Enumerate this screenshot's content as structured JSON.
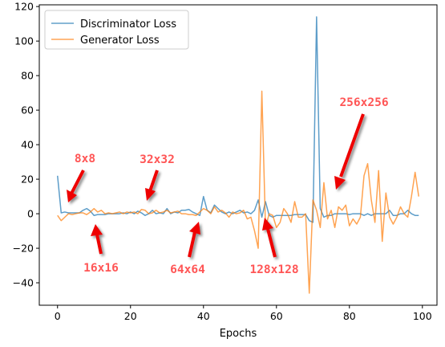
{
  "chart_data": {
    "type": "line",
    "title": "",
    "xlabel": "Epochs",
    "ylabel": "",
    "xlim": [
      -5,
      104
    ],
    "ylim": [
      -53,
      121
    ],
    "xticks": [
      0,
      20,
      40,
      60,
      80,
      100
    ],
    "yticks": [
      -40,
      -20,
      0,
      20,
      40,
      60,
      80,
      100,
      120
    ],
    "grid": false,
    "legend_position": "top-left",
    "series": [
      {
        "name": "Discriminator Loss",
        "color": "#1f77b4",
        "x": [
          0,
          1,
          2,
          3,
          4,
          5,
          6,
          7,
          8,
          9,
          10,
          11,
          12,
          13,
          14,
          15,
          16,
          17,
          18,
          19,
          20,
          21,
          22,
          23,
          24,
          25,
          26,
          27,
          28,
          29,
          30,
          31,
          32,
          33,
          34,
          35,
          36,
          37,
          38,
          39,
          40,
          41,
          42,
          43,
          44,
          45,
          46,
          47,
          48,
          49,
          50,
          51,
          52,
          53,
          54,
          55,
          56,
          57,
          58,
          59,
          60,
          61,
          62,
          63,
          64,
          65,
          66,
          67,
          68,
          69,
          70,
          71,
          72,
          73,
          74,
          75,
          76,
          77,
          78,
          79,
          80,
          81,
          82,
          83,
          84,
          85,
          86,
          87,
          88,
          89,
          90,
          91,
          92,
          93,
          94,
          95,
          96,
          97,
          98,
          99
        ],
        "values": [
          22,
          0.5,
          1,
          0.5,
          0.5,
          0.5,
          0.5,
          2,
          3,
          1.5,
          -1,
          -0.5,
          -0.5,
          -0.5,
          0,
          0,
          0,
          0,
          0.5,
          0,
          1,
          0,
          1.5,
          0.5,
          -1,
          0,
          2,
          0,
          0.5,
          0,
          3,
          0,
          1,
          0.5,
          2,
          2,
          2.5,
          1,
          0,
          -1,
          10,
          2,
          0.5,
          5,
          3,
          1,
          0,
          1,
          0,
          1,
          2,
          0.5,
          1,
          0,
          2,
          8,
          -2,
          7,
          -1,
          -2,
          -1,
          -1,
          -1,
          -1,
          -1,
          -0.5,
          -0.5,
          -0.5,
          -0.5,
          -4,
          -5,
          114,
          3,
          -2,
          -1,
          -1,
          0,
          0,
          0,
          0,
          -0.5,
          0,
          0,
          0,
          -1,
          0,
          -1,
          0,
          0,
          0,
          0,
          2,
          -1,
          -1,
          0,
          0,
          2,
          0,
          -1,
          -1
        ]
      },
      {
        "name": "Generator Loss",
        "color": "#ff7f0e",
        "x": [
          0,
          1,
          2,
          3,
          4,
          5,
          6,
          7,
          8,
          9,
          10,
          11,
          12,
          13,
          14,
          15,
          16,
          17,
          18,
          19,
          20,
          21,
          22,
          23,
          24,
          25,
          26,
          27,
          28,
          29,
          30,
          31,
          32,
          33,
          34,
          35,
          36,
          37,
          38,
          39,
          40,
          41,
          42,
          43,
          44,
          45,
          46,
          47,
          48,
          49,
          50,
          51,
          52,
          53,
          54,
          55,
          56,
          57,
          58,
          59,
          60,
          61,
          62,
          63,
          64,
          65,
          66,
          67,
          68,
          69,
          70,
          71,
          72,
          73,
          74,
          75,
          76,
          77,
          78,
          79,
          80,
          81,
          82,
          83,
          84,
          85,
          86,
          87,
          88,
          89,
          90,
          91,
          92,
          93,
          94,
          95,
          96,
          97,
          98,
          99
        ],
        "values": [
          -1,
          -4,
          -2,
          0,
          -0.5,
          0,
          0.5,
          0.5,
          -0.5,
          1,
          3,
          1,
          2,
          0,
          0.5,
          0,
          0.5,
          1,
          0,
          1,
          0.5,
          1,
          0,
          2.5,
          2,
          0,
          0.5,
          2,
          0.5,
          1,
          2,
          0.5,
          1,
          1.5,
          0,
          0,
          -0.5,
          -0.5,
          -1,
          1,
          3,
          2,
          0,
          4,
          1,
          2,
          0.5,
          -2,
          1,
          0,
          0.5,
          2,
          -3,
          -2,
          -10,
          -20,
          71,
          -8,
          0,
          -1,
          -8,
          -5,
          3,
          0,
          -5,
          7,
          -2,
          -2,
          0,
          -46,
          8,
          2,
          -8,
          18,
          -3,
          2,
          -8,
          4,
          2,
          5,
          -7,
          -3,
          -6,
          -2,
          22,
          29,
          8,
          -5,
          25,
          -16,
          12,
          -2,
          -6,
          -2,
          4,
          0,
          -2,
          10,
          24,
          10
        ]
      }
    ],
    "annotations": [
      {
        "text": "8x8",
        "color": "#ff5555"
      },
      {
        "text": "16x16",
        "color": "#ff5555"
      },
      {
        "text": "32x32",
        "color": "#ff5555"
      },
      {
        "text": "64x64",
        "color": "#ff5555"
      },
      {
        "text": "128x128",
        "color": "#ff5555"
      },
      {
        "text": "256x256",
        "color": "#ff5555"
      }
    ]
  }
}
